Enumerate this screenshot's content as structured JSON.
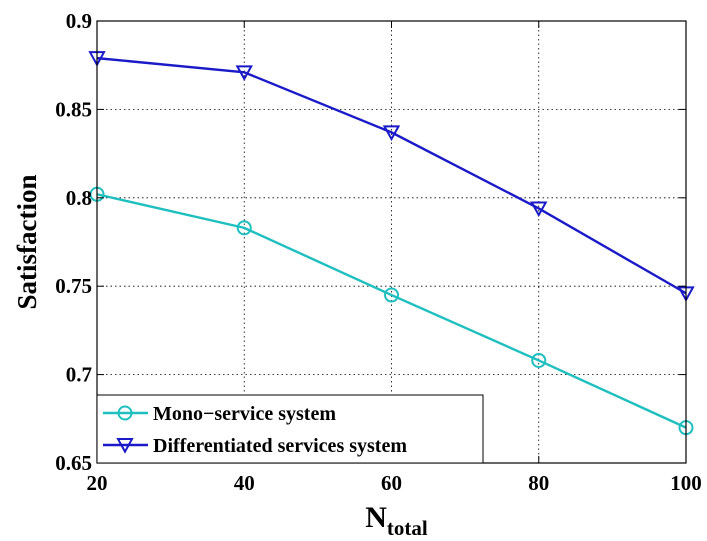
{
  "chart_data": {
    "type": "line",
    "title": "",
    "xlabel": "N",
    "xlabel_subscript": "total",
    "ylabel": "Satisfaction",
    "x": [
      20,
      40,
      60,
      80,
      100
    ],
    "xlim": [
      20,
      100
    ],
    "ylim": [
      0.65,
      0.9
    ],
    "xticks": [
      "20",
      "40",
      "60",
      "80",
      "100"
    ],
    "yticks": [
      "0.65",
      "0.7",
      "0.75",
      "0.8",
      "0.85",
      "0.9"
    ],
    "grid": true,
    "legend_position": "bottom-left",
    "series": [
      {
        "name": "Mono−service system",
        "values": [
          0.802,
          0.783,
          0.745,
          0.708,
          0.67
        ],
        "color": "#1fbfbf",
        "marker": "circle"
      },
      {
        "name": "Differentiated services system",
        "values": [
          0.879,
          0.871,
          0.837,
          0.794,
          0.746
        ],
        "color": "#1a1ac8",
        "marker": "triangle-down"
      }
    ]
  }
}
